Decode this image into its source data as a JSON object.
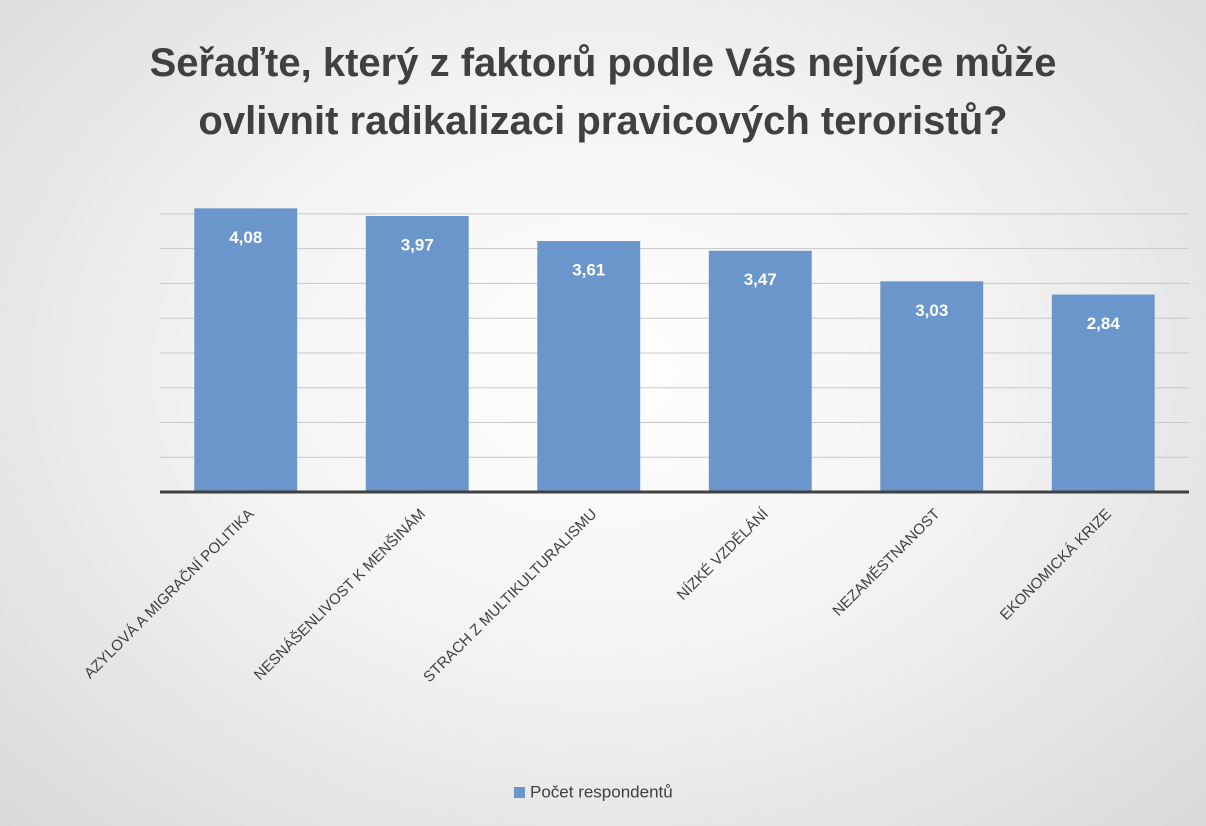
{
  "chart_data": {
    "type": "bar",
    "title": "Seřaďte, který z faktorů podle Vás nejvíce může ovlivnit radikalizaci pravicových teroristů?",
    "categories": [
      "AZYLOVÁ A MIGRAČNÍ POLITIKA",
      "NESNÁŠENLIVOST K MENŠINÁM",
      "STRACH Z MULTIKULTURALISMU",
      "NÍZKÉ VZDĚLÁNÍ",
      "NEZAMĚSTNANOST",
      "EKONOMICKÁ KRIZE"
    ],
    "series": [
      {
        "name": "Počet respondentů",
        "color": "#6a96cc",
        "values": [
          4.08,
          3.97,
          3.61,
          3.47,
          3.03,
          2.84
        ],
        "value_labels": [
          "4,08",
          "3,97",
          "3,61",
          "3,47",
          "3,03",
          "2,84"
        ]
      }
    ],
    "ylim": [
      0,
      4.2
    ],
    "yticks": [
      0,
      0.5,
      1,
      1.5,
      2,
      2.5,
      3,
      3.5,
      4
    ],
    "grid": true,
    "legend": "bottom"
  }
}
